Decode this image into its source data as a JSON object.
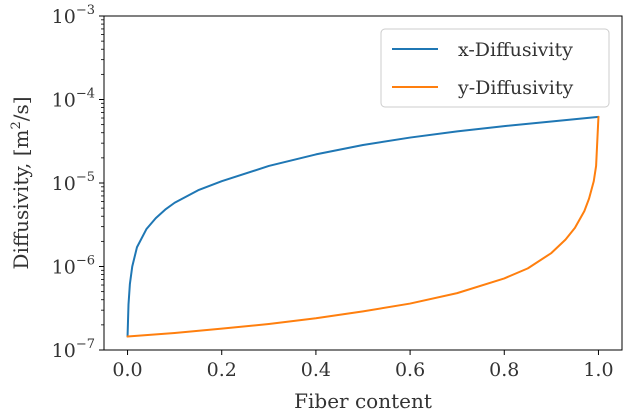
{
  "chart_data": {
    "type": "line",
    "title": "",
    "xlabel": "Fiber content",
    "ylabel": "Diffusivity, [m²/s]",
    "ylabel_parts": {
      "main": "Diffusivity, [m",
      "exp": "2",
      "tail": "/s]"
    },
    "xlim": [
      -0.05,
      1.05
    ],
    "ylim": [
      1e-07,
      0.001
    ],
    "yscale": "log",
    "grid": false,
    "legend_position": "top-right",
    "xticks": [
      0.0,
      0.2,
      0.4,
      0.6,
      0.8,
      1.0
    ],
    "xtick_labels": [
      "0.0",
      "0.2",
      "0.4",
      "0.6",
      "0.8",
      "1.0"
    ],
    "yticks": [
      1e-07,
      1e-06,
      1e-05,
      0.0001,
      0.001
    ],
    "ytick_labels": [
      {
        "base": "10",
        "exp": "−7"
      },
      {
        "base": "10",
        "exp": "−6"
      },
      {
        "base": "10",
        "exp": "−5"
      },
      {
        "base": "10",
        "exp": "−4"
      },
      {
        "base": "10",
        "exp": "−3"
      }
    ],
    "series": [
      {
        "name": "x-Diffusivity",
        "color": "#1f77b4",
        "x": [
          0.0,
          0.002,
          0.005,
          0.01,
          0.02,
          0.04,
          0.06,
          0.08,
          0.1,
          0.15,
          0.2,
          0.3,
          0.4,
          0.5,
          0.6,
          0.7,
          0.8,
          0.9,
          1.0
        ],
        "y": [
          1.45e-07,
          3.5e-07,
          6.2e-07,
          1e-06,
          1.7e-06,
          2.8e-06,
          3.8e-06,
          4.8e-06,
          5.8e-06,
          8.2e-06,
          1.05e-05,
          1.6e-05,
          2.2e-05,
          2.85e-05,
          3.5e-05,
          4.15e-05,
          4.8e-05,
          5.45e-05,
          6.2e-05
        ]
      },
      {
        "name": "y-Diffusivity",
        "color": "#ff7f0e",
        "x": [
          0.0,
          0.1,
          0.2,
          0.3,
          0.4,
          0.5,
          0.6,
          0.7,
          0.8,
          0.85,
          0.9,
          0.93,
          0.95,
          0.97,
          0.98,
          0.99,
          0.995,
          1.0
        ],
        "y": [
          1.45e-07,
          1.6e-07,
          1.8e-07,
          2.05e-07,
          2.4e-07,
          2.9e-07,
          3.6e-07,
          4.8e-07,
          7.2e-07,
          9.5e-07,
          1.45e-06,
          2.1e-06,
          2.9e-06,
          4.6e-06,
          6.5e-06,
          1.05e-05,
          1.6e-05,
          6.2e-05
        ]
      }
    ]
  }
}
